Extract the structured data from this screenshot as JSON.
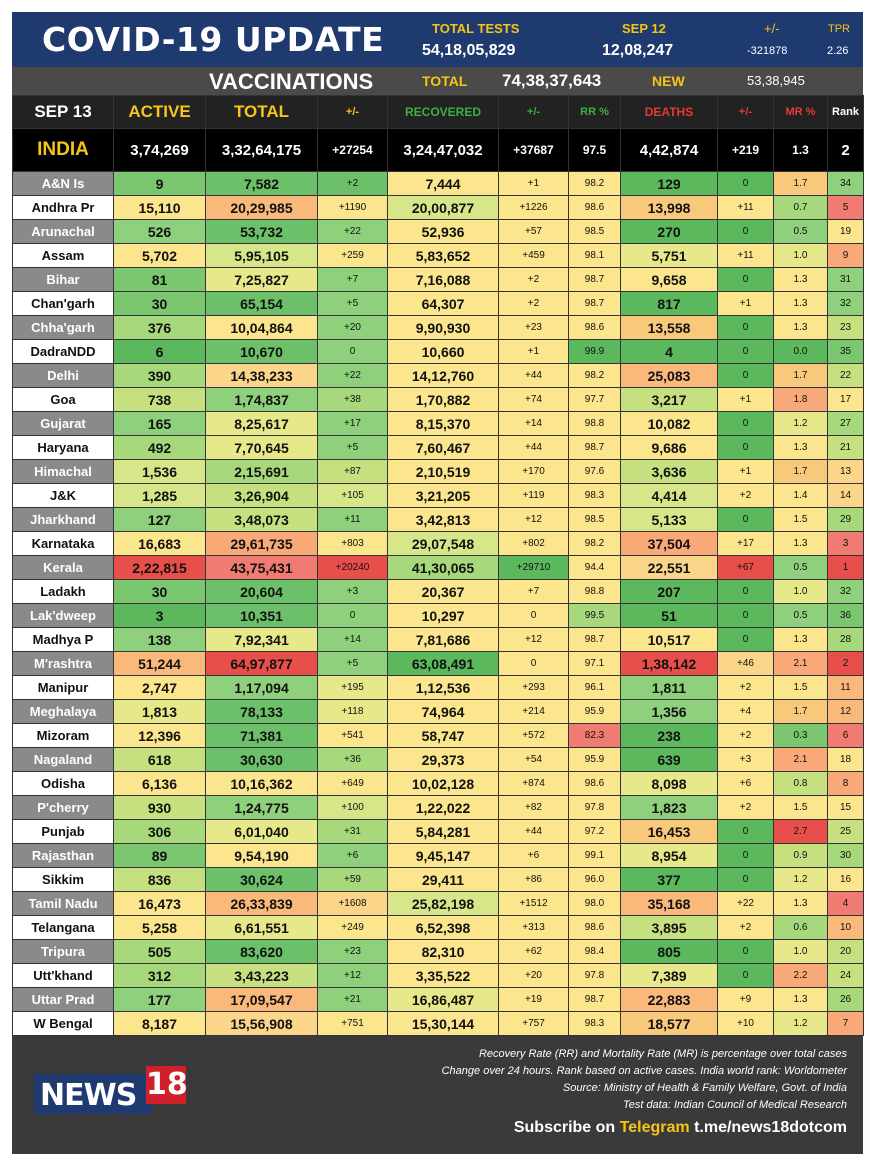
{
  "header": {
    "title": "COVID-19 UPDATE",
    "total_tests_label": "TOTAL TESTS",
    "total_tests_value": "54,18,05,829",
    "date_label": "SEP 12",
    "date_tests_value": "12,08,247",
    "change_label": "+/-",
    "change_value": "-321878",
    "tpr_label": "TPR",
    "tpr_value": "2.26"
  },
  "vaccinations": {
    "title": "VACCINATIONS",
    "total_label": "TOTAL",
    "total_value": "74,38,37,643",
    "new_label": "NEW",
    "new_value": "53,38,945"
  },
  "columns": [
    "SEP 13",
    "ACTIVE",
    "TOTAL",
    "+/-",
    "RECOVERED",
    "+/-",
    "RR %",
    "DEATHS",
    "+/-",
    "MR %",
    "Rank"
  ],
  "column_colors": [
    "#ffffff",
    "#f5c518",
    "#f5c518",
    "#f5c518",
    "#3cb043",
    "#3cb043",
    "#3cb043",
    "#e53935",
    "#e53935",
    "#e53935",
    "#ffffff"
  ],
  "india": [
    "INDIA",
    "3,74,269",
    "3,32,64,175",
    "+27254",
    "3,24,47,032",
    "+37687",
    "97.5",
    "4,42,874",
    "+219",
    "1.3",
    "2"
  ],
  "rows": [
    {
      "cells": [
        "A&N Is",
        "9",
        "7,582",
        "+2",
        "7,444",
        "+1",
        "98.2",
        "129",
        "0",
        "1.7",
        "34"
      ],
      "colors": [
        "",
        "#7bc76f",
        "#6cc06a",
        "#6cc06a",
        "#fbe58d",
        "#fbe58d",
        "#fbe58d",
        "#5cb85c",
        "#5cb85c",
        "#f8c97a",
        "#8fd07c"
      ]
    },
    {
      "cells": [
        "Andhra Pr",
        "15,110",
        "20,29,985",
        "+1190",
        "20,00,877",
        "+1226",
        "98.6",
        "13,998",
        "+11",
        "0.7",
        "5"
      ],
      "colors": [
        "",
        "#fbe58d",
        "#f9b97a",
        "#fbe58d",
        "#d8e68a",
        "#fbe58d",
        "#fbe58d",
        "#f8c97a",
        "#fbe58d",
        "#a8d87c",
        "#f07b72"
      ]
    },
    {
      "cells": [
        "Arunachal",
        "526",
        "53,732",
        "+22",
        "52,936",
        "+57",
        "98.5",
        "270",
        "0",
        "0.5",
        "19"
      ],
      "colors": [
        "",
        "#8fd07c",
        "#6cc06a",
        "#8fd07c",
        "#fbe58d",
        "#fbe58d",
        "#fbe58d",
        "#5cb85c",
        "#5cb85c",
        "#8fd07c",
        "#fbe58d"
      ]
    },
    {
      "cells": [
        "Assam",
        "5,702",
        "5,95,105",
        "+259",
        "5,83,652",
        "+459",
        "98.1",
        "5,751",
        "+11",
        "1.0",
        "9"
      ],
      "colors": [
        "",
        "#fbe58d",
        "#d8e68a",
        "#fbe58d",
        "#fbe58d",
        "#fbe58d",
        "#fbe58d",
        "#e6e88a",
        "#fbe58d",
        "#e6e88a",
        "#f9a977"
      ]
    },
    {
      "cells": [
        "Bihar",
        "81",
        "7,25,827",
        "+7",
        "7,16,088",
        "+2",
        "98.7",
        "9,658",
        "0",
        "1.3",
        "31"
      ],
      "colors": [
        "",
        "#7bc76f",
        "#e6e88a",
        "#8fd07c",
        "#fbe58d",
        "#fbe58d",
        "#fbe58d",
        "#fbe58d",
        "#5cb85c",
        "#fbe58d",
        "#8fd07c"
      ]
    },
    {
      "cells": [
        "Chan'garh",
        "30",
        "65,154",
        "+5",
        "64,307",
        "+2",
        "98.7",
        "817",
        "+1",
        "1.3",
        "32"
      ],
      "colors": [
        "",
        "#7bc76f",
        "#6cc06a",
        "#8fd07c",
        "#fbe58d",
        "#fbe58d",
        "#fbe58d",
        "#5cb85c",
        "#fbe58d",
        "#fbe58d",
        "#8fd07c"
      ]
    },
    {
      "cells": [
        "Chha'garh",
        "376",
        "10,04,864",
        "+20",
        "9,90,930",
        "+23",
        "98.6",
        "13,558",
        "0",
        "1.3",
        "23"
      ],
      "colors": [
        "",
        "#a8d87c",
        "#fbe58d",
        "#8fd07c",
        "#fbe58d",
        "#fbe58d",
        "#fbe58d",
        "#f8c97a",
        "#5cb85c",
        "#fbe58d",
        "#c6e080"
      ]
    },
    {
      "cells": [
        "DadraNDD",
        "6",
        "10,670",
        "0",
        "10,660",
        "+1",
        "99.9",
        "4",
        "0",
        "0.0",
        "35"
      ],
      "colors": [
        "",
        "#5cb85c",
        "#6cc06a",
        "#8fd07c",
        "#fbe58d",
        "#fbe58d",
        "#5cb85c",
        "#5cb85c",
        "#5cb85c",
        "#5cb85c",
        "#7bc76f"
      ]
    },
    {
      "cells": [
        "Delhi",
        "390",
        "14,38,233",
        "+22",
        "14,12,760",
        "+44",
        "98.2",
        "25,083",
        "0",
        "1.7",
        "22"
      ],
      "colors": [
        "",
        "#a8d87c",
        "#fbd68a",
        "#8fd07c",
        "#fbe58d",
        "#fbe58d",
        "#fbe58d",
        "#f9b97a",
        "#5cb85c",
        "#f8c97a",
        "#c6e080"
      ]
    },
    {
      "cells": [
        "Goa",
        "738",
        "1,74,837",
        "+38",
        "1,70,882",
        "+74",
        "97.7",
        "3,217",
        "+1",
        "1.8",
        "17"
      ],
      "colors": [
        "",
        "#c6e080",
        "#8fd07c",
        "#a8d87c",
        "#fbe58d",
        "#fbe58d",
        "#fbe58d",
        "#c6e080",
        "#fbe58d",
        "#f8a97a",
        "#fbe58d"
      ]
    },
    {
      "cells": [
        "Gujarat",
        "165",
        "8,25,617",
        "+17",
        "8,15,370",
        "+14",
        "98.8",
        "10,082",
        "0",
        "1.2",
        "27"
      ],
      "colors": [
        "",
        "#8fd07c",
        "#e6e88a",
        "#8fd07c",
        "#fbe58d",
        "#fbe58d",
        "#fbe58d",
        "#fbe58d",
        "#5cb85c",
        "#e6e88a",
        "#a8d87c"
      ]
    },
    {
      "cells": [
        "Haryana",
        "492",
        "7,70,645",
        "+5",
        "7,60,467",
        "+44",
        "98.7",
        "9,686",
        "0",
        "1.3",
        "21"
      ],
      "colors": [
        "",
        "#a8d87c",
        "#e6e88a",
        "#8fd07c",
        "#fbe58d",
        "#fbe58d",
        "#fbe58d",
        "#fbe58d",
        "#5cb85c",
        "#fbe58d",
        "#c6e080"
      ]
    },
    {
      "cells": [
        "Himachal",
        "1,536",
        "2,15,691",
        "+87",
        "2,10,519",
        "+170",
        "97.6",
        "3,636",
        "+1",
        "1.7",
        "13"
      ],
      "colors": [
        "",
        "#d8e68a",
        "#a8d87c",
        "#c6e080",
        "#fbe58d",
        "#fbe58d",
        "#fbe58d",
        "#c6e080",
        "#fbe58d",
        "#f8c97a",
        "#fbd68a"
      ]
    },
    {
      "cells": [
        "J&K",
        "1,285",
        "3,26,904",
        "+105",
        "3,21,205",
        "+119",
        "98.3",
        "4,414",
        "+2",
        "1.4",
        "14"
      ],
      "colors": [
        "",
        "#d8e68a",
        "#c6e080",
        "#d8e68a",
        "#fbe58d",
        "#fbe58d",
        "#fbe58d",
        "#d8e68a",
        "#fbe58d",
        "#fbe58d",
        "#fbd68a"
      ]
    },
    {
      "cells": [
        "Jharkhand",
        "127",
        "3,48,073",
        "+11",
        "3,42,813",
        "+12",
        "98.5",
        "5,133",
        "0",
        "1.5",
        "29"
      ],
      "colors": [
        "",
        "#8fd07c",
        "#c6e080",
        "#8fd07c",
        "#fbe58d",
        "#fbe58d",
        "#fbe58d",
        "#d8e68a",
        "#5cb85c",
        "#fbe58d",
        "#a8d87c"
      ]
    },
    {
      "cells": [
        "Karnataka",
        "16,683",
        "29,61,735",
        "+803",
        "29,07,548",
        "+802",
        "98.2",
        "37,504",
        "+17",
        "1.3",
        "3"
      ],
      "colors": [
        "",
        "#fbe58d",
        "#f9a977",
        "#fbe58d",
        "#d8e68a",
        "#fbe58d",
        "#fbe58d",
        "#f9a977",
        "#fbe58d",
        "#fbe58d",
        "#f07b72"
      ]
    },
    {
      "cells": [
        "Kerala",
        "2,22,815",
        "43,75,431",
        "+20240",
        "41,30,065",
        "+29710",
        "94.4",
        "22,551",
        "+67",
        "0.5",
        "1"
      ],
      "colors": [
        "",
        "#e84f4a",
        "#f07b72",
        "#e84f4a",
        "#a8d87c",
        "#5cb85c",
        "#fbe58d",
        "#fbd68a",
        "#e84f4a",
        "#8fd07c",
        "#e84f4a"
      ]
    },
    {
      "cells": [
        "Ladakh",
        "30",
        "20,604",
        "+3",
        "20,367",
        "+7",
        "98.8",
        "207",
        "0",
        "1.0",
        "32"
      ],
      "colors": [
        "",
        "#7bc76f",
        "#6cc06a",
        "#8fd07c",
        "#fbe58d",
        "#fbe58d",
        "#fbe58d",
        "#5cb85c",
        "#5cb85c",
        "#e6e88a",
        "#8fd07c"
      ]
    },
    {
      "cells": [
        "Lak'dweep",
        "3",
        "10,351",
        "0",
        "10,297",
        "0",
        "99.5",
        "51",
        "0",
        "0.5",
        "36"
      ],
      "colors": [
        "",
        "#5cb85c",
        "#6cc06a",
        "#8fd07c",
        "#fbe58d",
        "#fbe58d",
        "#a8d87c",
        "#5cb85c",
        "#5cb85c",
        "#8fd07c",
        "#7bc76f"
      ]
    },
    {
      "cells": [
        "Madhya P",
        "138",
        "7,92,341",
        "+14",
        "7,81,686",
        "+12",
        "98.7",
        "10,517",
        "0",
        "1.3",
        "28"
      ],
      "colors": [
        "",
        "#8fd07c",
        "#e6e88a",
        "#8fd07c",
        "#fbe58d",
        "#fbe58d",
        "#fbe58d",
        "#fbe58d",
        "#5cb85c",
        "#fbe58d",
        "#a8d87c"
      ]
    },
    {
      "cells": [
        "M'rashtra",
        "51,244",
        "64,97,877",
        "+5",
        "63,08,491",
        "0",
        "97.1",
        "1,38,142",
        "+46",
        "2.1",
        "2"
      ],
      "colors": [
        "",
        "#f9b97a",
        "#e84f4a",
        "#8fd07c",
        "#5cb85c",
        "#fbe58d",
        "#fbe58d",
        "#e84f4a",
        "#fbd68a",
        "#f9a977",
        "#e84f4a"
      ]
    },
    {
      "cells": [
        "Manipur",
        "2,747",
        "1,17,094",
        "+195",
        "1,12,536",
        "+293",
        "96.1",
        "1,811",
        "+2",
        "1.5",
        "11"
      ],
      "colors": [
        "",
        "#fbe58d",
        "#8fd07c",
        "#e6e88a",
        "#fbe58d",
        "#fbe58d",
        "#fbe58d",
        "#8fd07c",
        "#fbe58d",
        "#fbe58d",
        "#f9b97a"
      ]
    },
    {
      "cells": [
        "Meghalaya",
        "1,813",
        "78,133",
        "+118",
        "74,964",
        "+214",
        "95.9",
        "1,356",
        "+4",
        "1.7",
        "12"
      ],
      "colors": [
        "",
        "#e6e88a",
        "#6cc06a",
        "#e6e88a",
        "#fbe58d",
        "#fbe58d",
        "#fbe58d",
        "#8fd07c",
        "#fbe58d",
        "#f8c97a",
        "#f9b97a"
      ]
    },
    {
      "cells": [
        "Mizoram",
        "12,396",
        "71,381",
        "+541",
        "58,747",
        "+572",
        "82.3",
        "238",
        "+2",
        "0.3",
        "6"
      ],
      "colors": [
        "",
        "#fbe58d",
        "#6cc06a",
        "#fbe58d",
        "#fbe58d",
        "#fbe58d",
        "#f07b72",
        "#5cb85c",
        "#fbe58d",
        "#7bc76f",
        "#f07b72"
      ]
    },
    {
      "cells": [
        "Nagaland",
        "618",
        "30,630",
        "+36",
        "29,373",
        "+54",
        "95.9",
        "639",
        "+3",
        "2.1",
        "18"
      ],
      "colors": [
        "",
        "#c6e080",
        "#6cc06a",
        "#a8d87c",
        "#fbe58d",
        "#fbe58d",
        "#fbe58d",
        "#5cb85c",
        "#fbe58d",
        "#f9a977",
        "#fbe58d"
      ]
    },
    {
      "cells": [
        "Odisha",
        "6,136",
        "10,16,362",
        "+649",
        "10,02,128",
        "+874",
        "98.6",
        "8,098",
        "+6",
        "0.8",
        "8"
      ],
      "colors": [
        "",
        "#fbe58d",
        "#fbe58d",
        "#fbe58d",
        "#fbe58d",
        "#fbe58d",
        "#fbe58d",
        "#e6e88a",
        "#fbe58d",
        "#c6e080",
        "#f9a977"
      ]
    },
    {
      "cells": [
        "P'cherry",
        "930",
        "1,24,775",
        "+100",
        "1,22,022",
        "+82",
        "97.8",
        "1,823",
        "+2",
        "1.5",
        "15"
      ],
      "colors": [
        "",
        "#c6e080",
        "#8fd07c",
        "#d8e68a",
        "#fbe58d",
        "#fbe58d",
        "#fbe58d",
        "#8fd07c",
        "#fbe58d",
        "#fbe58d",
        "#fbe58d"
      ]
    },
    {
      "cells": [
        "Punjab",
        "306",
        "6,01,040",
        "+31",
        "5,84,281",
        "+44",
        "97.2",
        "16,453",
        "0",
        "2.7",
        "25"
      ],
      "colors": [
        "",
        "#a8d87c",
        "#e6e88a",
        "#a8d87c",
        "#fbe58d",
        "#fbe58d",
        "#fbe58d",
        "#f8c97a",
        "#5cb85c",
        "#e84f4a",
        "#c6e080"
      ]
    },
    {
      "cells": [
        "Rajasthan",
        "89",
        "9,54,190",
        "+6",
        "9,45,147",
        "+6",
        "99.1",
        "8,954",
        "0",
        "0.9",
        "30"
      ],
      "colors": [
        "",
        "#7bc76f",
        "#fbe58d",
        "#8fd07c",
        "#fbe58d",
        "#fbe58d",
        "#fbe58d",
        "#e6e88a",
        "#5cb85c",
        "#c6e080",
        "#a8d87c"
      ]
    },
    {
      "cells": [
        "Sikkim",
        "836",
        "30,624",
        "+59",
        "29,411",
        "+86",
        "96.0",
        "377",
        "0",
        "1.2",
        "16"
      ],
      "colors": [
        "",
        "#c6e080",
        "#6cc06a",
        "#a8d87c",
        "#fbe58d",
        "#fbe58d",
        "#fbe58d",
        "#5cb85c",
        "#5cb85c",
        "#e6e88a",
        "#fbe58d"
      ]
    },
    {
      "cells": [
        "Tamil Nadu",
        "16,473",
        "26,33,839",
        "+1608",
        "25,82,198",
        "+1512",
        "98.0",
        "35,168",
        "+22",
        "1.3",
        "4"
      ],
      "colors": [
        "",
        "#fbe58d",
        "#f9b97a",
        "#fbd68a",
        "#d8e68a",
        "#fbe58d",
        "#fbe58d",
        "#f9b97a",
        "#fbe58d",
        "#fbe58d",
        "#f07b72"
      ]
    },
    {
      "cells": [
        "Telangana",
        "5,258",
        "6,61,551",
        "+249",
        "6,52,398",
        "+313",
        "98.6",
        "3,895",
        "+2",
        "0.6",
        "10"
      ],
      "colors": [
        "",
        "#fbe58d",
        "#e6e88a",
        "#fbe58d",
        "#fbe58d",
        "#fbe58d",
        "#fbe58d",
        "#c6e080",
        "#fbe58d",
        "#a8d87c",
        "#f9b97a"
      ]
    },
    {
      "cells": [
        "Tripura",
        "505",
        "83,620",
        "+23",
        "82,310",
        "+62",
        "98.4",
        "805",
        "0",
        "1.0",
        "20"
      ],
      "colors": [
        "",
        "#a8d87c",
        "#6cc06a",
        "#8fd07c",
        "#fbe58d",
        "#fbe58d",
        "#fbe58d",
        "#5cb85c",
        "#5cb85c",
        "#e6e88a",
        "#c6e080"
      ]
    },
    {
      "cells": [
        "Utt'khand",
        "312",
        "3,43,223",
        "+12",
        "3,35,522",
        "+20",
        "97.8",
        "7,389",
        "0",
        "2.2",
        "24"
      ],
      "colors": [
        "",
        "#a8d87c",
        "#c6e080",
        "#8fd07c",
        "#fbe58d",
        "#fbe58d",
        "#fbe58d",
        "#e6e88a",
        "#5cb85c",
        "#f9a977",
        "#c6e080"
      ]
    },
    {
      "cells": [
        "Uttar Prad",
        "177",
        "17,09,547",
        "+21",
        "16,86,487",
        "+19",
        "98.7",
        "22,883",
        "+9",
        "1.3",
        "26"
      ],
      "colors": [
        "",
        "#8fd07c",
        "#f9b97a",
        "#8fd07c",
        "#e6e88a",
        "#fbe58d",
        "#fbe58d",
        "#f9b97a",
        "#fbe58d",
        "#fbe58d",
        "#a8d87c"
      ]
    },
    {
      "cells": [
        "W Bengal",
        "8,187",
        "15,56,908",
        "+751",
        "15,30,144",
        "+757",
        "98.3",
        "18,577",
        "+10",
        "1.2",
        "7"
      ],
      "colors": [
        "",
        "#fbe58d",
        "#fbd68a",
        "#fbe58d",
        "#fbe58d",
        "#fbe58d",
        "#fbe58d",
        "#f8c97a",
        "#fbe58d",
        "#e6e88a",
        "#f9a977"
      ]
    }
  ],
  "footer": {
    "notes": [
      "Recovery Rate (RR) and Mortality Rate (MR) is percentage over total cases",
      "Change over 24 hours. Rank based on active cases. India world rank: Worldometer",
      "Source: Ministry of Health & Family Welfare, Govt. of India",
      "Test data: Indian Council of Medical Research"
    ],
    "logo_text": "NEWS",
    "logo_number": "18",
    "subscribe_prefix": "Subscribe on",
    "subscribe_platform": "Telegram",
    "subscribe_link": "t.me/news18dotcom"
  }
}
